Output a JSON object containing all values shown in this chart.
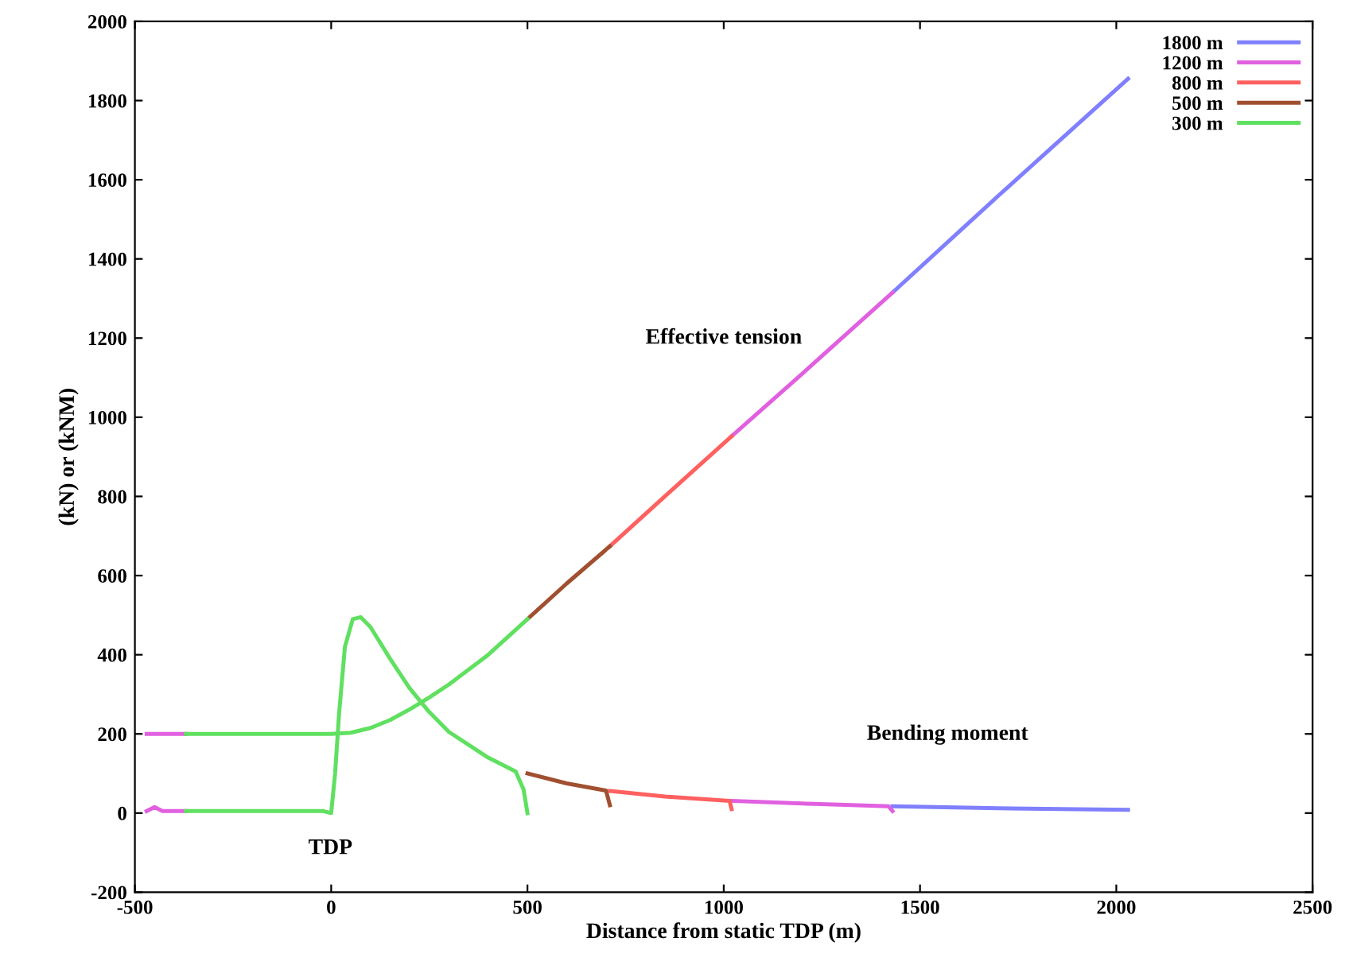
{
  "chart_data": {
    "type": "line",
    "xlabel": "Distance from static TDP (m)",
    "ylabel": "(kN) or (kNM)",
    "xlim": [
      -500,
      2500
    ],
    "xticks": [
      -500,
      0,
      500,
      1000,
      1500,
      2000,
      2500
    ],
    "ylim": [
      -200,
      2000
    ],
    "yticks": [
      -200,
      0,
      200,
      400,
      600,
      800,
      1000,
      1200,
      1400,
      1600,
      1800,
      2000
    ],
    "grid": false,
    "legend": "top right",
    "marker": "none",
    "line_style": "solid",
    "annotations": [
      "Effective tension",
      "Bending moment",
      "TDP"
    ],
    "series": [
      {
        "name": "1800 m",
        "color": "#8080ff",
        "x": [
          1430,
          1700,
          2030
        ],
        "values": [
          1315,
          1560,
          1855
        ]
      },
      {
        "color": "#8080ff",
        "x": [
          1430,
          1700,
          2030
        ],
        "values": [
          17,
          12,
          8
        ]
      },
      {
        "name": "1200 m",
        "color": "#e060e0",
        "x": [
          -470,
          -370,
          -300,
          1020,
          1200,
          1430
        ],
        "values": [
          200,
          200,
          null,
          952,
          1110,
          1315
        ]
      },
      {
        "color": "#e060e0",
        "x": [
          -470,
          -450,
          -430,
          -370,
          -300,
          1020,
          1200,
          1420,
          1430
        ],
        "values": [
          5,
          15,
          5,
          5,
          null,
          31,
          24,
          17,
          5
        ]
      },
      {
        "name": "800 m",
        "color": "#ff6060",
        "x": [
          710,
          850,
          1020
        ],
        "values": [
          674,
          800,
          952
        ]
      },
      {
        "color": "#ff6060",
        "x": [
          710,
          850,
          1015,
          1020
        ],
        "values": [
          56,
          42,
          31,
          10
        ]
      },
      {
        "name": "500 m",
        "color": "#a05030",
        "x": [
          500,
          600,
          710
        ],
        "values": [
          490,
          580,
          674
        ]
      },
      {
        "color": "#a05030",
        "x": [
          500,
          600,
          700,
          710
        ],
        "values": [
          100,
          75,
          57,
          20
        ]
      },
      {
        "name": "300 m",
        "color": "#60e060",
        "x": [
          -370,
          0,
          50,
          100,
          150,
          200,
          250,
          300,
          400,
          500
        ],
        "values": [
          200,
          200,
          203,
          215,
          235,
          262,
          292,
          325,
          400,
          490
        ]
      },
      {
        "color": "#60e060",
        "x": [
          -370,
          -20,
          0,
          10,
          20,
          35,
          55,
          75,
          100,
          150,
          200,
          250,
          300,
          400,
          470,
          490,
          500
        ],
        "values": [
          5,
          5,
          0,
          100,
          250,
          420,
          490,
          495,
          470,
          390,
          315,
          255,
          205,
          140,
          105,
          60,
          0
        ]
      }
    ]
  }
}
